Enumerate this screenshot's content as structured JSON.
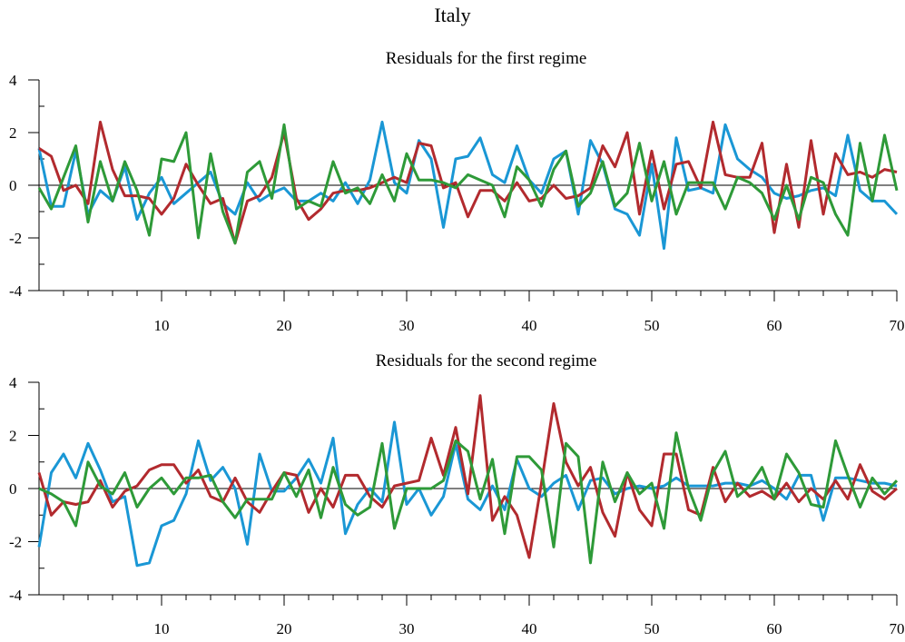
{
  "title": "Italy",
  "colors": {
    "series1": "#1a97d5",
    "series2": "#b22a2e",
    "series3": "#2e9a38"
  },
  "chart_data": [
    {
      "type": "line",
      "title": "Residuals for the first regime",
      "xlabel": "",
      "ylabel": "",
      "xlim": [
        0,
        70
      ],
      "ylim": [
        -4,
        4
      ],
      "xticks": [
        10,
        20,
        30,
        40,
        50,
        60,
        70
      ],
      "yticks": [
        -4,
        -2,
        0,
        2,
        4
      ],
      "zero_line": true,
      "x": [
        0,
        1,
        2,
        3,
        4,
        5,
        6,
        7,
        8,
        9,
        10,
        11,
        12,
        13,
        14,
        15,
        16,
        17,
        18,
        19,
        20,
        21,
        22,
        23,
        24,
        25,
        26,
        27,
        28,
        29,
        30,
        31,
        32,
        33,
        34,
        35,
        36,
        37,
        38,
        39,
        40,
        41,
        42,
        43,
        44,
        45,
        46,
        47,
        48,
        49,
        50,
        51,
        52,
        53,
        54,
        55,
        56,
        57,
        58,
        59,
        60,
        61,
        62,
        63,
        64,
        65,
        66,
        67,
        68,
        69,
        70
      ],
      "series": [
        {
          "color": "#1a97d5",
          "values": [
            1.4,
            -0.8,
            -0.8,
            1.3,
            -1.1,
            -0.2,
            -0.6,
            0.7,
            -1.3,
            -0.3,
            0.3,
            -0.7,
            -0.3,
            0.1,
            0.5,
            -0.7,
            -1.1,
            0.1,
            -0.6,
            -0.3,
            -0.1,
            -0.6,
            -0.6,
            -0.3,
            -0.6,
            0.1,
            -0.7,
            0.2,
            2.4,
            0.1,
            -0.3,
            1.7,
            1.0,
            -1.6,
            1.0,
            1.1,
            1.8,
            0.4,
            0.1,
            1.5,
            0.2,
            -0.3,
            1.0,
            1.3,
            -1.1,
            1.7,
            0.8,
            -0.9,
            -1.1,
            -1.9,
            0.8,
            -2.4,
            1.8,
            -0.2,
            -0.1,
            -0.3,
            2.3,
            1.0,
            0.6,
            0.3,
            -0.3,
            -0.5,
            -0.4,
            -0.2,
            -0.1,
            -0.4,
            1.9,
            -0.2,
            -0.6,
            -0.6,
            -1.1
          ]
        },
        {
          "color": "#b22a2e",
          "values": [
            1.4,
            1.1,
            -0.2,
            0.0,
            -0.7,
            2.4,
            0.6,
            -0.4,
            -0.4,
            -0.5,
            -1.1,
            -0.5,
            0.8,
            0.0,
            -0.7,
            -0.5,
            -2.2,
            -0.6,
            -0.4,
            0.3,
            2.0,
            -0.5,
            -1.3,
            -0.9,
            -0.3,
            -0.2,
            -0.2,
            -0.1,
            0.1,
            0.3,
            0.1,
            1.6,
            1.5,
            -0.1,
            0.1,
            -1.2,
            -0.2,
            -0.2,
            -0.6,
            0.1,
            -0.6,
            -0.5,
            0.0,
            -0.5,
            -0.4,
            -0.1,
            1.5,
            0.7,
            2.0,
            -1.1,
            1.3,
            -0.9,
            0.8,
            0.9,
            -0.1,
            2.4,
            0.4,
            0.3,
            0.3,
            1.6,
            -1.8,
            0.8,
            -1.6,
            1.7,
            -1.1,
            1.2,
            0.4,
            0.5,
            0.3,
            0.6,
            0.5
          ]
        },
        {
          "color": "#2e9a38",
          "values": [
            -0.1,
            -0.9,
            0.3,
            1.5,
            -1.4,
            0.9,
            -0.6,
            0.9,
            -0.2,
            -1.9,
            1.0,
            0.9,
            2.0,
            -2.0,
            1.2,
            -1.0,
            -2.2,
            0.5,
            0.9,
            -0.5,
            2.3,
            -0.9,
            -0.6,
            -0.8,
            0.9,
            -0.3,
            -0.1,
            -0.7,
            0.4,
            -0.6,
            1.2,
            0.2,
            0.2,
            0.1,
            -0.1,
            0.4,
            0.2,
            0.0,
            -1.2,
            0.7,
            0.2,
            -0.8,
            0.6,
            1.3,
            -0.8,
            -0.3,
            0.9,
            -0.8,
            -0.3,
            1.6,
            -0.6,
            0.9,
            -1.1,
            0.1,
            0.1,
            0.1,
            -0.9,
            0.3,
            0.1,
            -0.3,
            -1.3,
            0.0,
            -1.3,
            0.3,
            0.1,
            -1.1,
            -1.9,
            1.6,
            -0.6,
            1.9,
            -0.2
          ]
        }
      ]
    },
    {
      "type": "line",
      "title": "Residuals for the second regime",
      "xlabel": "",
      "ylabel": "",
      "xlim": [
        0,
        70
      ],
      "ylim": [
        -4,
        4
      ],
      "xticks": [
        10,
        20,
        30,
        40,
        50,
        60,
        70
      ],
      "yticks": [
        -4,
        -2,
        0,
        2,
        4
      ],
      "zero_line": true,
      "x": [
        0,
        1,
        2,
        3,
        4,
        5,
        6,
        7,
        8,
        9,
        10,
        11,
        12,
        13,
        14,
        15,
        16,
        17,
        18,
        19,
        20,
        21,
        22,
        23,
        24,
        25,
        26,
        27,
        28,
        29,
        30,
        31,
        32,
        33,
        34,
        35,
        36,
        37,
        38,
        39,
        40,
        41,
        42,
        43,
        44,
        45,
        46,
        47,
        48,
        49,
        50,
        51,
        52,
        53,
        54,
        55,
        56,
        57,
        58,
        59,
        60,
        61,
        62,
        63,
        64,
        65,
        66,
        67,
        68,
        69,
        70
      ],
      "series": [
        {
          "color": "#1a97d5",
          "values": [
            -2.2,
            0.6,
            1.3,
            0.4,
            1.7,
            0.7,
            -0.5,
            -0.3,
            -2.9,
            -2.8,
            -1.4,
            -1.2,
            -0.2,
            1.8,
            0.3,
            0.8,
            0.0,
            -2.1,
            1.3,
            -0.1,
            -0.1,
            0.4,
            1.1,
            0.2,
            1.9,
            -1.7,
            -0.6,
            0.0,
            -0.5,
            2.5,
            -0.6,
            0.0,
            -1.0,
            -0.3,
            1.7,
            -0.4,
            -0.8,
            0.1,
            -0.8,
            1.1,
            0.0,
            -0.3,
            0.2,
            0.5,
            -0.8,
            0.3,
            0.4,
            -0.2,
            0.0,
            0.1,
            0.0,
            0.1,
            0.4,
            0.1,
            0.1,
            0.1,
            0.2,
            0.2,
            0.1,
            0.3,
            0.0,
            -0.4,
            0.5,
            0.5,
            -1.2,
            0.4,
            0.4,
            0.3,
            0.2,
            0.2,
            0.1
          ]
        },
        {
          "color": "#b22a2e",
          "values": [
            0.6,
            -1.0,
            -0.5,
            -0.6,
            -0.5,
            0.3,
            -0.7,
            -0.1,
            0.1,
            0.7,
            0.9,
            0.9,
            0.2,
            0.7,
            -0.3,
            -0.5,
            0.4,
            -0.5,
            -0.9,
            -0.1,
            0.6,
            0.5,
            -0.9,
            0.0,
            -0.7,
            0.5,
            0.5,
            -0.3,
            -0.7,
            0.1,
            0.2,
            0.3,
            1.9,
            0.5,
            2.3,
            -0.2,
            3.5,
            -1.2,
            -0.3,
            -1.0,
            -2.6,
            0.2,
            3.2,
            1.0,
            0.1,
            0.8,
            -0.9,
            -1.8,
            0.6,
            -0.8,
            -1.4,
            1.3,
            1.3,
            -0.8,
            -1.0,
            0.8,
            -0.5,
            0.2,
            -0.3,
            -0.1,
            -0.4,
            0.2,
            -0.5,
            0.0,
            -0.4,
            0.3,
            -0.4,
            0.9,
            -0.1,
            -0.4,
            0.0
          ]
        },
        {
          "color": "#2e9a38",
          "values": [
            0.0,
            -0.2,
            -0.5,
            -1.4,
            1.0,
            0.1,
            -0.2,
            0.6,
            -0.7,
            0.0,
            0.4,
            -0.2,
            0.4,
            0.4,
            0.5,
            -0.5,
            -1.1,
            -0.4,
            -0.4,
            -0.4,
            0.6,
            -0.3,
            0.7,
            -1.1,
            0.8,
            -0.6,
            -1.0,
            -0.7,
            1.7,
            -1.5,
            0.0,
            0.0,
            0.0,
            0.3,
            1.8,
            1.4,
            -0.4,
            1.1,
            -1.7,
            1.2,
            1.2,
            0.7,
            -2.2,
            1.7,
            1.2,
            -2.8,
            1.0,
            -0.5,
            0.6,
            -0.2,
            0.2,
            -1.5,
            2.1,
            0.0,
            -1.2,
            0.6,
            1.4,
            -0.3,
            0.1,
            0.8,
            -0.4,
            1.3,
            0.6,
            -0.6,
            -0.7,
            1.8,
            0.5,
            -0.7,
            0.4,
            -0.2,
            0.3
          ]
        }
      ]
    }
  ]
}
